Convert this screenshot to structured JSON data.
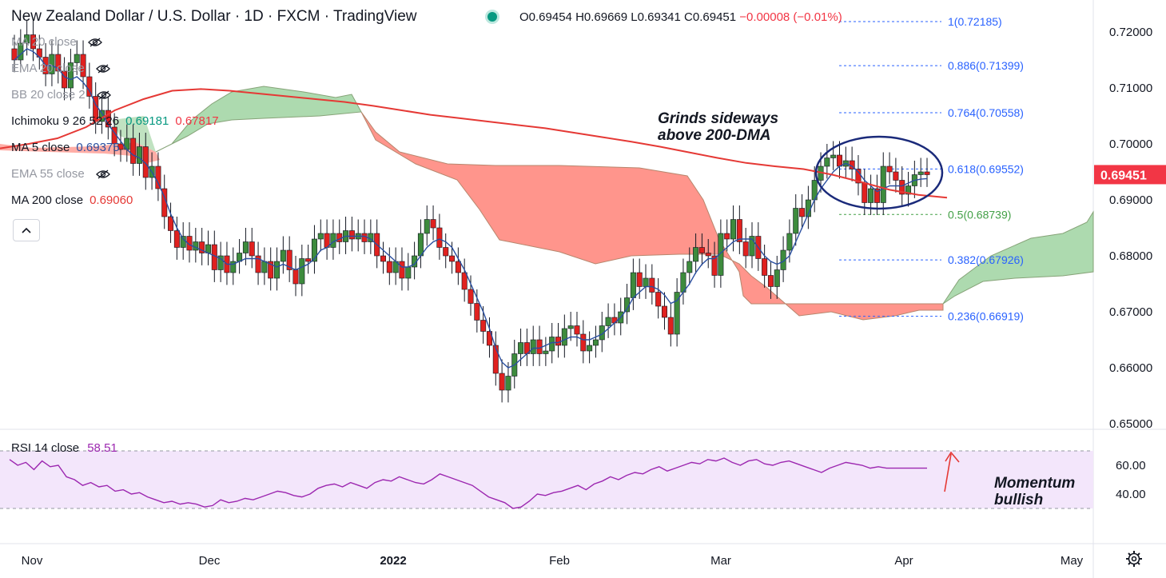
{
  "header": {
    "title": "New Zealand Dollar / U.S. Dollar · 1D · FXCM · TradingView",
    "ohlc": {
      "o": "O0.69454",
      "h": "H0.69669",
      "l": "L0.69341",
      "c": "C0.69451",
      "chg": "−0.00008 (−0.01%)"
    }
  },
  "legend": [
    {
      "name": "MA 20 close",
      "values": [],
      "hidden": true
    },
    {
      "name": "EMA 20 close",
      "values": [],
      "hidden": true
    },
    {
      "name": "BB 20 close 2",
      "values": [],
      "hidden": true
    },
    {
      "name": "Ichimoku 9 26 52 26",
      "values": [
        {
          "v": "0.69181",
          "color": "#089981"
        },
        {
          "v": "0.67817",
          "color": "#f23645"
        }
      ],
      "hidden": false
    },
    {
      "name": "MA 5 close",
      "values": [
        {
          "v": "0.69375",
          "color": "#2a4fa0"
        }
      ],
      "hidden": false
    },
    {
      "name": "EMA 55 close",
      "values": [],
      "hidden": true
    },
    {
      "name": "MA 200 close",
      "values": [
        {
          "v": "0.69060",
          "color": "#e53935"
        }
      ],
      "hidden": false
    }
  ],
  "collapse_icon": "chevron-up-icon",
  "rsi": {
    "label": "RSI 14 close",
    "value": "58.51",
    "ticks": [
      "60.00",
      "40.00"
    ]
  },
  "annotations": {
    "main": [
      "Grinds sideways",
      "above 200-DMA"
    ],
    "rsi": [
      "Momentum",
      "bullish"
    ]
  },
  "price_badge": "0.69451",
  "colors": {
    "up": "#3d8b3d",
    "down": "#e0211f",
    "ma5": "#2a4fa0",
    "ma200": "#e53935",
    "rsi": "#9c27b0",
    "fib_blue": "#2962ff",
    "fib_green": "#43a047",
    "cloud_green": "#a5d6a7",
    "cloud_red": "#ff8a80"
  },
  "chart_data": {
    "type": "candlestick",
    "title": "New Zealand Dollar / U.S. Dollar · 1D · FXCM · TradingView",
    "y_ticks": [
      "0.72000",
      "0.71000",
      "0.70000",
      "0.69000",
      "0.68000",
      "0.67000",
      "0.66000",
      "0.65000"
    ],
    "ylim": [
      0.6463,
      0.724
    ],
    "x_ticks": [
      "Nov",
      "Dec",
      "2022",
      "Feb",
      "Mar",
      "Apr",
      "May"
    ],
    "fib_levels": [
      {
        "label": "1(0.72185)",
        "value": 0.72185,
        "color": "#2962ff"
      },
      {
        "label": "0.886(0.71399)",
        "value": 0.71399,
        "color": "#2962ff"
      },
      {
        "label": "0.764(0.70558)",
        "value": 0.70558,
        "color": "#2962ff"
      },
      {
        "label": "0.618(0.69552)",
        "value": 0.69552,
        "color": "#2962ff"
      },
      {
        "label": "0.5(0.68739)",
        "value": 0.68739,
        "color": "#43a047"
      },
      {
        "label": "0.382(0.67926)",
        "value": 0.67926,
        "color": "#2962ff"
      },
      {
        "label": "0.236(0.66919)",
        "value": 0.66919,
        "color": "#2962ff"
      }
    ],
    "closes": [
      0.715,
      0.718,
      0.7195,
      0.717,
      0.7155,
      0.7125,
      0.716,
      0.713,
      0.71,
      0.7145,
      0.716,
      0.712,
      0.7085,
      0.704,
      0.706,
      0.703,
      0.7,
      0.699,
      0.701,
      0.6965,
      0.6995,
      0.694,
      0.696,
      0.692,
      0.687,
      0.6845,
      0.6815,
      0.6835,
      0.681,
      0.6825,
      0.6805,
      0.682,
      0.6775,
      0.68,
      0.677,
      0.679,
      0.6805,
      0.6825,
      0.68,
      0.677,
      0.679,
      0.676,
      0.679,
      0.681,
      0.6775,
      0.675,
      0.6795,
      0.679,
      0.683,
      0.684,
      0.6815,
      0.684,
      0.6825,
      0.6845,
      0.683,
      0.684,
      0.6825,
      0.684,
      0.68,
      0.679,
      0.677,
      0.679,
      0.676,
      0.678,
      0.68,
      0.684,
      0.6865,
      0.685,
      0.6815,
      0.68,
      0.679,
      0.677,
      0.674,
      0.6715,
      0.6685,
      0.6665,
      0.664,
      0.659,
      0.656,
      0.6585,
      0.6625,
      0.6645,
      0.6625,
      0.665,
      0.6625,
      0.663,
      0.6655,
      0.664,
      0.667,
      0.6675,
      0.666,
      0.663,
      0.664,
      0.665,
      0.6675,
      0.669,
      0.668,
      0.67,
      0.6725,
      0.677,
      0.6745,
      0.676,
      0.6735,
      0.671,
      0.669,
      0.666,
      0.6735,
      0.677,
      0.679,
      0.6815,
      0.6805,
      0.68,
      0.6765,
      0.684,
      0.683,
      0.6865,
      0.6825,
      0.68,
      0.6835,
      0.6795,
      0.6765,
      0.6745,
      0.6775,
      0.681,
      0.684,
      0.6885,
      0.687,
      0.69,
      0.6935,
      0.696,
      0.6975,
      0.698,
      0.696,
      0.697,
      0.6955,
      0.693,
      0.6895,
      0.692,
      0.6895,
      0.696,
      0.695,
      0.6935,
      0.691,
      0.6925,
      0.6945,
      0.695,
      0.6945
    ],
    "ma5": [
      0.715,
      0.716,
      0.717,
      0.7165,
      0.7155,
      0.714,
      0.714,
      0.7135,
      0.712,
      0.7115,
      0.712,
      0.711,
      0.7095,
      0.707,
      0.7055,
      0.7035,
      0.702,
      0.7005,
      0.699,
      0.698,
      0.6975,
      0.6965,
      0.695,
      0.693,
      0.6905,
      0.6875,
      0.685,
      0.683,
      0.682,
      0.6815,
      0.681,
      0.6805,
      0.68,
      0.6795,
      0.6785,
      0.6785,
      0.679,
      0.6795,
      0.6795,
      0.6795,
      0.679,
      0.6785,
      0.678,
      0.6785,
      0.678,
      0.6775,
      0.678,
      0.6785,
      0.6795,
      0.681,
      0.6815,
      0.6825,
      0.683,
      0.6835,
      0.6835,
      0.6835,
      0.6835,
      0.683,
      0.682,
      0.681,
      0.68,
      0.679,
      0.678,
      0.678,
      0.6785,
      0.68,
      0.6815,
      0.6825,
      0.683,
      0.6825,
      0.6815,
      0.6795,
      0.6775,
      0.675,
      0.6725,
      0.67,
      0.667,
      0.6635,
      0.661,
      0.66,
      0.6605,
      0.6615,
      0.6625,
      0.6635,
      0.6635,
      0.664,
      0.6645,
      0.6645,
      0.665,
      0.6655,
      0.6655,
      0.665,
      0.665,
      0.6655,
      0.666,
      0.667,
      0.668,
      0.669,
      0.6705,
      0.6725,
      0.6735,
      0.6745,
      0.6745,
      0.674,
      0.673,
      0.6715,
      0.672,
      0.6735,
      0.675,
      0.677,
      0.6785,
      0.6795,
      0.6795,
      0.6805,
      0.6815,
      0.6825,
      0.683,
      0.683,
      0.683,
      0.6815,
      0.68,
      0.679,
      0.6785,
      0.679,
      0.68,
      0.6825,
      0.685,
      0.6875,
      0.69,
      0.692,
      0.6935,
      0.695,
      0.696,
      0.6965,
      0.696,
      0.695,
      0.6935,
      0.6925,
      0.6915,
      0.692,
      0.6925,
      0.6925,
      0.6925,
      0.693,
      0.6935,
      0.6937,
      0.6938
    ],
    "ma200": [
      0.6992,
      0.7,
      0.701,
      0.703,
      0.706,
      0.708,
      0.7095,
      0.7098,
      0.7095,
      0.709,
      0.7085,
      0.708,
      0.7075,
      0.7068,
      0.706,
      0.7052,
      0.7046,
      0.704,
      0.7034,
      0.7028,
      0.702,
      0.7012,
      0.7004,
      0.6995,
      0.6985,
      0.6975,
      0.6966,
      0.696,
      0.6955,
      0.6945,
      0.6932,
      0.6918,
      0.6909,
      0.6904
    ],
    "rsi": [
      64,
      60,
      62,
      57,
      63,
      59,
      60,
      52,
      50,
      46,
      48,
      45,
      46,
      42,
      43,
      40,
      41,
      38,
      36,
      34,
      35,
      33,
      34,
      33,
      31,
      32,
      36,
      34,
      35,
      37,
      36,
      38,
      40,
      42,
      41,
      39,
      38,
      40,
      44,
      46,
      47,
      45,
      48,
      46,
      44,
      48,
      50,
      49,
      52,
      50,
      48,
      47,
      50,
      54,
      52,
      50,
      48,
      46,
      42,
      38,
      36,
      34,
      30,
      31,
      35,
      40,
      39,
      41,
      42,
      44,
      46,
      43,
      47,
      49,
      52,
      50,
      53,
      55,
      54,
      57,
      59,
      56,
      58,
      60,
      62,
      61,
      64,
      63,
      65,
      62,
      60,
      63,
      64,
      61,
      60,
      62,
      63,
      61,
      59,
      57,
      55,
      58,
      60,
      62,
      61,
      60,
      58,
      59,
      58,
      58,
      58,
      58,
      58,
      58
    ]
  }
}
